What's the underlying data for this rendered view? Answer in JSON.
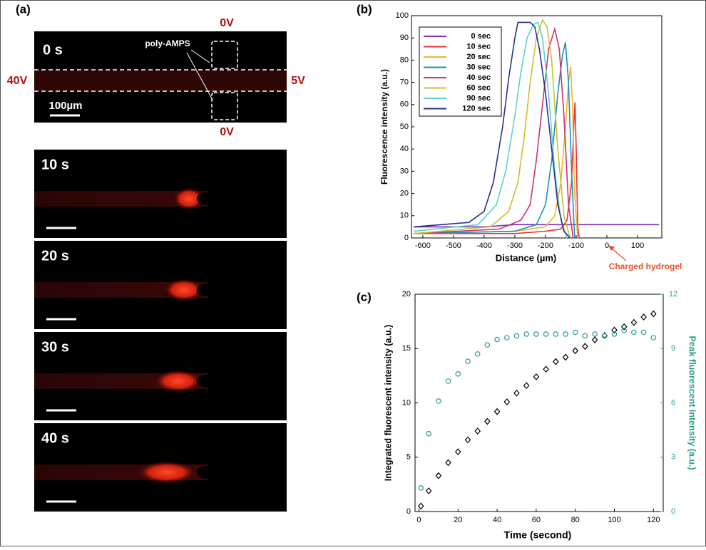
{
  "panel_a": {
    "label": "(a)",
    "first_time": "0 s",
    "top_voltage": "0V",
    "bottom_voltage": "0V",
    "left_voltage": "40V",
    "right_voltage": "5V",
    "gel_label": "poly-AMPS",
    "scale_label": "100µm",
    "times": [
      "10 s",
      "20 s",
      "30 s",
      "40 s"
    ]
  },
  "chart_data": [
    {
      "type": "line",
      "panel_label": "(b)",
      "x_label": "Distance (µm)",
      "y_label": "Fluorescence intensity (a.u.)",
      "annotation": "Charged hydrogel",
      "xlim": [
        -637,
        179
      ],
      "xticks": [
        -600,
        -500,
        -400,
        -300,
        -200,
        -100,
        0,
        100
      ],
      "ylim": [
        0,
        100
      ],
      "yticks": [
        0,
        10,
        20,
        30,
        40,
        50,
        60,
        70,
        80,
        90,
        100
      ],
      "legend": "upper left",
      "series": [
        {
          "name": "0 sec",
          "color": "#7b2fbf",
          "x": [
            -630,
            -500,
            -400,
            -300,
            -200,
            -100,
            0,
            100,
            170
          ],
          "values": [
            5,
            5,
            5,
            6,
            6,
            6,
            6,
            6,
            6
          ]
        },
        {
          "name": "10 sec",
          "color": "#e8303a",
          "x": [
            -630,
            -300,
            -200,
            -150,
            -130,
            -115,
            -108,
            -104,
            -100,
            -95,
            -90
          ],
          "values": [
            2,
            2,
            3,
            4,
            8,
            25,
            50,
            61,
            40,
            5,
            0
          ]
        },
        {
          "name": "20 sec",
          "color": "#f0b429",
          "x": [
            -630,
            -300,
            -200,
            -170,
            -150,
            -135,
            -125,
            -118,
            -112,
            -105,
            -95
          ],
          "values": [
            2,
            3,
            5,
            10,
            25,
            50,
            70,
            77,
            60,
            20,
            0
          ]
        },
        {
          "name": "30 sec",
          "color": "#1f8fb8",
          "x": [
            -630,
            -300,
            -230,
            -200,
            -180,
            -160,
            -145,
            -135,
            -125,
            -115,
            -105
          ],
          "values": [
            2,
            3,
            6,
            15,
            35,
            65,
            82,
            88,
            70,
            30,
            0
          ]
        },
        {
          "name": "40 sec",
          "color": "#c8327a",
          "x": [
            -630,
            -350,
            -280,
            -250,
            -230,
            -210,
            -190,
            -170,
            -155,
            -140,
            -125,
            -110
          ],
          "values": [
            2,
            4,
            8,
            15,
            35,
            60,
            85,
            94,
            85,
            55,
            15,
            0
          ]
        },
        {
          "name": "60 sec",
          "color": "#c9c02f",
          "x": [
            -630,
            -380,
            -320,
            -290,
            -270,
            -250,
            -230,
            -210,
            -195,
            -180,
            -160,
            -140,
            -120
          ],
          "values": [
            2,
            5,
            12,
            25,
            45,
            70,
            90,
            98,
            95,
            80,
            40,
            10,
            0
          ]
        },
        {
          "name": "90 sec",
          "color": "#5fd3c8",
          "x": [
            -630,
            -420,
            -360,
            -330,
            -300,
            -280,
            -260,
            -240,
            -225,
            -210,
            -190,
            -170,
            -150,
            -130
          ],
          "values": [
            3,
            6,
            15,
            30,
            55,
            75,
            90,
            96,
            97,
            90,
            65,
            30,
            8,
            0
          ]
        },
        {
          "name": "120 sec",
          "color": "#2a2f8f",
          "x": [
            -630,
            -450,
            -400,
            -370,
            -340,
            -320,
            -300,
            -290,
            -250,
            -235,
            -220,
            -200,
            -180,
            -160,
            -140,
            -120
          ],
          "values": [
            5,
            7,
            12,
            25,
            50,
            72,
            90,
            97,
            97,
            95,
            85,
            65,
            40,
            15,
            3,
            0
          ]
        }
      ]
    },
    {
      "type": "scatter",
      "panel_label": "(c)",
      "x_label": "Time (second)",
      "y_label": "Integrated fluorescent intensity (a.u.)",
      "y2_label": "Peak fluorescent intensity (a.u.)",
      "xlim": [
        -2,
        125
      ],
      "xticks": [
        0,
        20,
        40,
        60,
        80,
        100,
        120
      ],
      "ylim": [
        0,
        20
      ],
      "yticks": [
        0,
        5,
        10,
        15,
        20
      ],
      "y2lim": [
        0,
        12
      ],
      "y2ticks": [
        0,
        3,
        6,
        9,
        12
      ],
      "x": [
        1,
        5,
        10,
        15,
        20,
        25,
        30,
        35,
        40,
        45,
        50,
        55,
        60,
        65,
        70,
        75,
        80,
        85,
        90,
        95,
        100,
        105,
        110,
        115,
        120
      ],
      "series": [
        {
          "color": "#000000",
          "marker": "diamond",
          "values": [
            0.5,
            1.9,
            3.3,
            4.5,
            5.5,
            6.6,
            7.4,
            8.3,
            9.2,
            10.1,
            10.9,
            11.6,
            12.4,
            13.1,
            13.8,
            14.2,
            14.8,
            15.2,
            15.8,
            16.2,
            16.7,
            17,
            17.4,
            17.9,
            18.2
          ]
        },
        {
          "color": "#2a9a96",
          "marker": "circle",
          "axis": "y2",
          "values": [
            1.3,
            4.3,
            6.1,
            7.2,
            7.6,
            8.3,
            8.7,
            9.2,
            9.5,
            9.6,
            9.7,
            9.8,
            9.8,
            9.8,
            9.8,
            9.8,
            9.9,
            9.7,
            9.8,
            9.7,
            9.8,
            10,
            9.9,
            9.9,
            9.6
          ]
        }
      ]
    }
  ]
}
